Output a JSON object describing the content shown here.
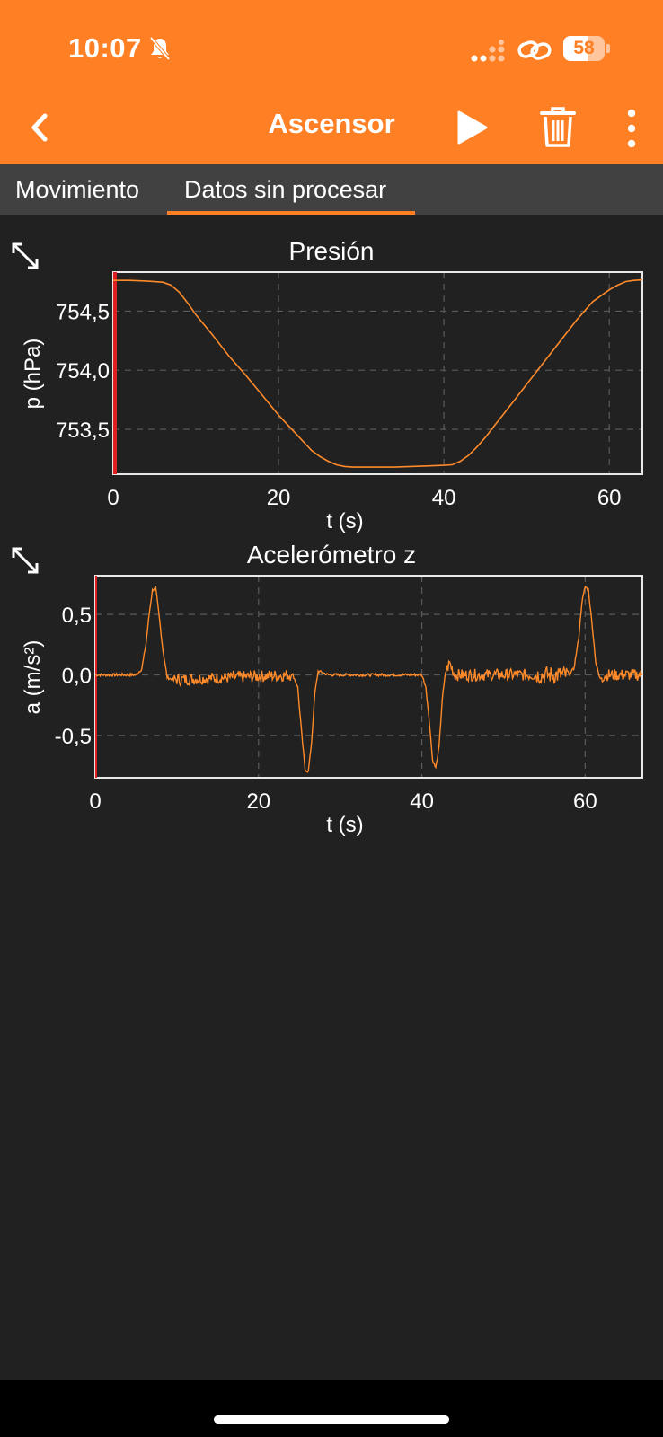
{
  "status_bar": {
    "time": "10:07",
    "battery": "58"
  },
  "header": {
    "title": "Ascensor"
  },
  "tabs": [
    {
      "label": "Movimiento"
    },
    {
      "label": "Datos sin procesar"
    }
  ],
  "charts": {
    "pressure": {
      "title": "Presión",
      "xlabel": "t (s)",
      "ylabel": "p (hPa)"
    },
    "accel": {
      "title": "Acelerómetro z",
      "xlabel": "t (s)",
      "ylabel": "a (m/s²)"
    }
  },
  "colors": {
    "accent": "#FF7F24",
    "background": "#212121",
    "tabbar": "#414141",
    "series": "#FF8A2A"
  },
  "chart_data": [
    {
      "type": "line",
      "title": "Presión",
      "xlabel": "t (s)",
      "ylabel": "p (hPa)",
      "xlim": [
        0,
        64
      ],
      "ylim": [
        753.12,
        754.83
      ],
      "xticks": [
        0,
        20,
        40,
        60
      ],
      "xtick_labels": [
        "0",
        "20",
        "40",
        "60"
      ],
      "yticks": [
        753.5,
        754.0,
        754.5
      ],
      "ytick_labels": [
        "753,5",
        "754,0",
        "754,5"
      ],
      "grid": true,
      "series": [
        {
          "x": [
            0,
            2,
            4,
            6,
            7,
            8,
            9,
            10,
            12,
            14,
            16,
            18,
            20,
            22,
            24,
            25,
            26,
            27,
            28,
            29,
            30,
            32,
            34,
            36,
            38,
            40,
            41,
            42,
            43,
            44,
            45,
            46,
            48,
            50,
            52,
            54,
            56,
            58,
            60,
            61,
            62,
            63,
            64
          ],
          "y": [
            754.76,
            754.76,
            754.755,
            754.745,
            754.72,
            754.66,
            754.57,
            754.47,
            754.3,
            754.12,
            753.96,
            753.79,
            753.62,
            753.47,
            753.32,
            753.27,
            753.23,
            753.2,
            753.185,
            753.18,
            753.18,
            753.18,
            753.18,
            753.185,
            753.19,
            753.195,
            753.2,
            753.23,
            753.28,
            753.35,
            753.43,
            753.52,
            753.7,
            753.88,
            754.06,
            754.24,
            754.42,
            754.58,
            754.68,
            754.72,
            754.75,
            754.76,
            754.765
          ]
        }
      ]
    },
    {
      "type": "line",
      "title": "Acelerómetro z",
      "xlabel": "t (s)",
      "ylabel": "a (m/s²)",
      "xlim": [
        0,
        67
      ],
      "ylim": [
        -0.85,
        0.82
      ],
      "xticks": [
        0,
        20,
        40,
        60
      ],
      "xtick_labels": [
        "0",
        "20",
        "40",
        "60"
      ],
      "yticks": [
        -0.5,
        0.0,
        0.5
      ],
      "ytick_labels": [
        "-0,5",
        "0,0",
        "0,5"
      ],
      "grid": true,
      "series": [
        {
          "x": [
            0,
            5,
            5.7,
            6.2,
            6.6,
            7.0,
            7.4,
            7.8,
            8.3,
            8.8,
            9.5,
            24.2,
            24.8,
            25.3,
            25.7,
            26.1,
            26.5,
            26.9,
            27.3,
            27.8,
            28.5,
            40,
            40.5,
            41,
            41.3,
            41.7,
            42.1,
            42.5,
            42.9,
            43.4,
            44,
            58,
            58.6,
            59.2,
            59.6,
            60,
            60.4,
            60.8,
            61.3,
            61.8,
            62.5,
            67
          ],
          "y": [
            0.0,
            0.0,
            0.05,
            0.25,
            0.5,
            0.7,
            0.72,
            0.5,
            0.2,
            -0.02,
            -0.04,
            0.0,
            -0.1,
            -0.5,
            -0.78,
            -0.8,
            -0.55,
            -0.15,
            0.03,
            0.02,
            0.0,
            0.0,
            -0.1,
            -0.45,
            -0.7,
            -0.77,
            -0.6,
            -0.2,
            0.02,
            0.1,
            0.0,
            0.0,
            0.05,
            0.3,
            0.6,
            0.73,
            0.7,
            0.45,
            0.1,
            -0.03,
            0.0,
            0.0
          ]
        }
      ]
    }
  ]
}
